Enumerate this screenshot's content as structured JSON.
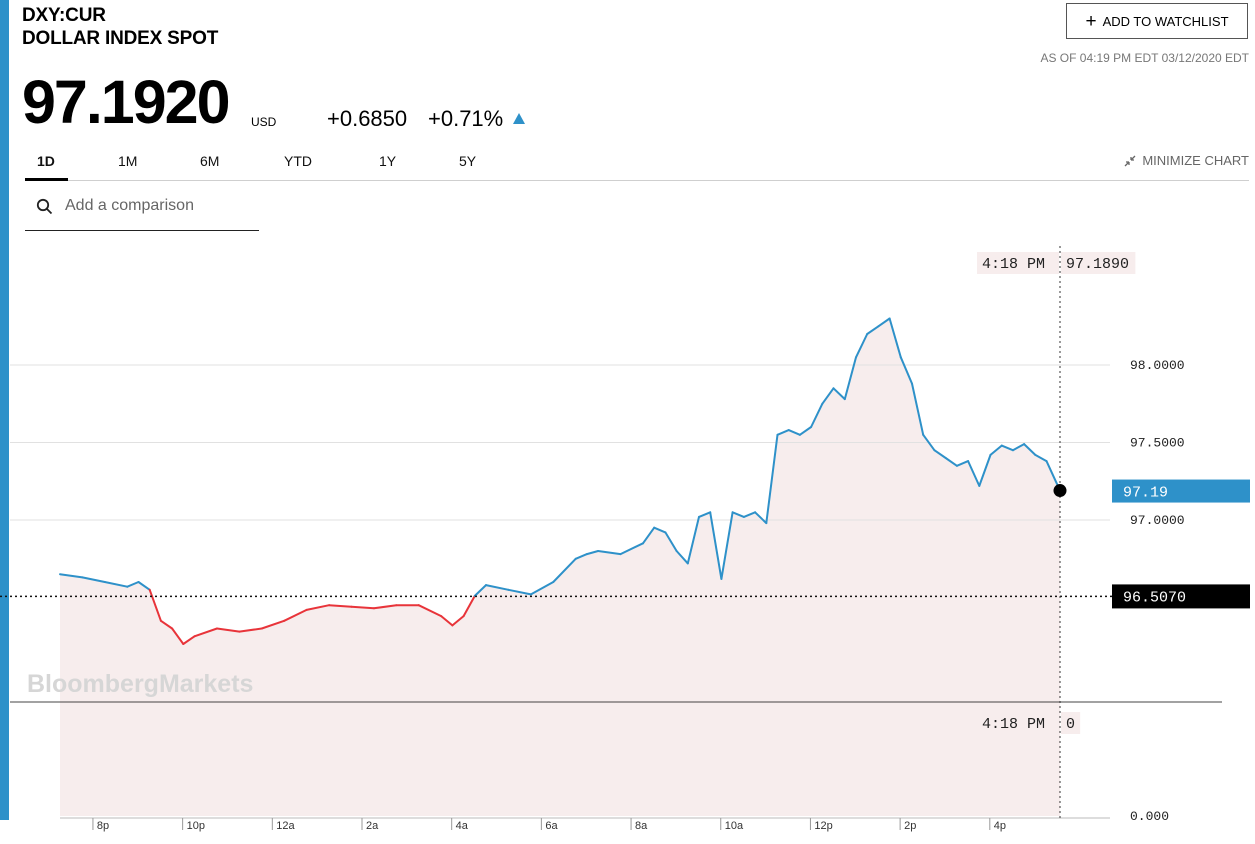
{
  "header": {
    "ticker": "DXY:CUR",
    "name": "DOLLAR INDEX SPOT",
    "price": "97.1920",
    "currency": "USD",
    "change": "+0.6850",
    "change_pct": "+0.71%",
    "watchlist_label": "ADD TO WATCHLIST",
    "as_of": "AS OF 04:19 PM EDT 03/12/2020 EDT"
  },
  "tabs": [
    "1D",
    "1M",
    "6M",
    "YTD",
    "1Y",
    "5Y"
  ],
  "active_tab": "1D",
  "minimize_label": "MINIMIZE CHART",
  "search": {
    "placeholder": "Add a comparison"
  },
  "colors": {
    "accent": "#2e91c9",
    "up": "#2e91c9",
    "down": "#e8343a",
    "fill": "#f7eded"
  },
  "chart_data": {
    "type": "line",
    "watermark": "BloombergMarkets",
    "x_ticks": [
      "8p",
      "10p",
      "12a",
      "2a",
      "4a",
      "6a",
      "8a",
      "10a",
      "12p",
      "2p",
      "4p"
    ],
    "y_ticks": [
      "98.0000",
      "97.5000",
      "97.0000"
    ],
    "volume_tick": "0.000",
    "previous_close": "96.5070",
    "last_value_label": "97.19",
    "crosshair": {
      "time": "4:18 PM",
      "price": "97.1890",
      "volume": "0"
    },
    "hours_from_start": [
      0,
      0.5,
      1,
      1.5,
      1.75,
      2,
      2.25,
      2.5,
      2.75,
      3,
      3.5,
      4,
      4.5,
      5,
      5.5,
      6,
      6.5,
      7,
      7.5,
      8,
      8.5,
      8.75,
      9,
      9.25,
      9.5,
      10,
      10.5,
      11,
      11.5,
      11.75,
      12,
      12.5,
      13,
      13.25,
      13.5,
      13.75,
      14,
      14.25,
      14.5,
      14.75,
      15,
      15.25,
      15.5,
      15.75,
      16,
      16.25,
      16.5,
      16.75,
      17,
      17.25,
      17.5,
      17.75,
      18,
      18.25,
      18.5,
      18.75,
      19,
      19.25,
      19.5,
      19.75,
      20,
      20.25,
      20.5,
      20.75,
      21,
      21.25,
      21.5,
      21.75,
      22,
      22.3
    ],
    "values": [
      96.65,
      96.63,
      96.6,
      96.57,
      96.6,
      96.55,
      96.35,
      96.3,
      96.2,
      96.25,
      96.3,
      96.28,
      96.3,
      96.35,
      96.42,
      96.45,
      96.44,
      96.43,
      96.45,
      96.45,
      96.38,
      96.32,
      96.38,
      96.51,
      96.58,
      96.55,
      96.52,
      96.6,
      96.75,
      96.78,
      96.8,
      96.78,
      96.85,
      96.95,
      96.92,
      96.8,
      96.72,
      97.02,
      97.05,
      96.62,
      97.05,
      97.02,
      97.05,
      96.98,
      97.55,
      97.58,
      97.55,
      97.6,
      97.75,
      97.85,
      97.78,
      98.05,
      98.2,
      98.25,
      98.3,
      98.05,
      97.88,
      97.55,
      97.45,
      97.4,
      97.35,
      97.38,
      97.22,
      97.42,
      97.48,
      97.45,
      97.49,
      97.42,
      97.38,
      97.19
    ],
    "ylim": [
      96.0,
      98.5
    ],
    "volume_range": [
      0,
      1
    ],
    "grid": "horizontal"
  }
}
